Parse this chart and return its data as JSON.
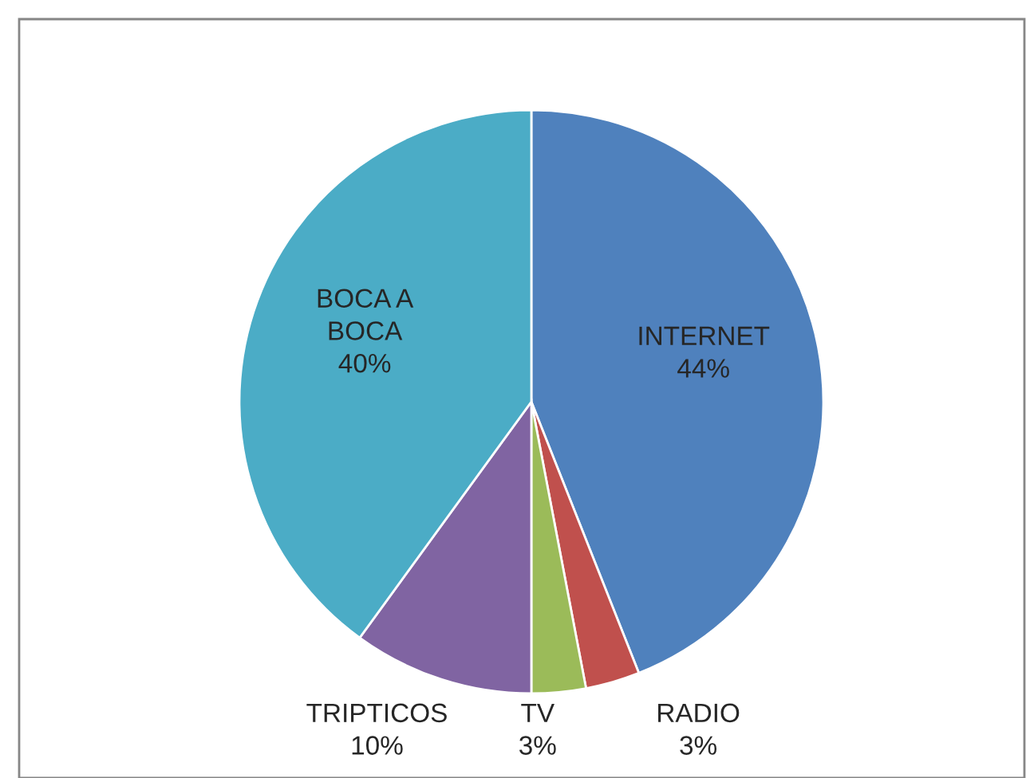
{
  "chart_data": {
    "type": "pie",
    "categories": [
      "INTERNET",
      "RADIO",
      "TV",
      "TRIPTICOS",
      "BOCA A BOCA"
    ],
    "values": [
      44,
      3,
      3,
      10,
      40
    ],
    "value_labels": [
      "44%",
      "3%",
      "3%",
      "10%",
      "40%"
    ],
    "colors": [
      "#4f81bd",
      "#c0504d",
      "#9bbb59",
      "#8064a2",
      "#4bacc6"
    ],
    "legend": false
  }
}
